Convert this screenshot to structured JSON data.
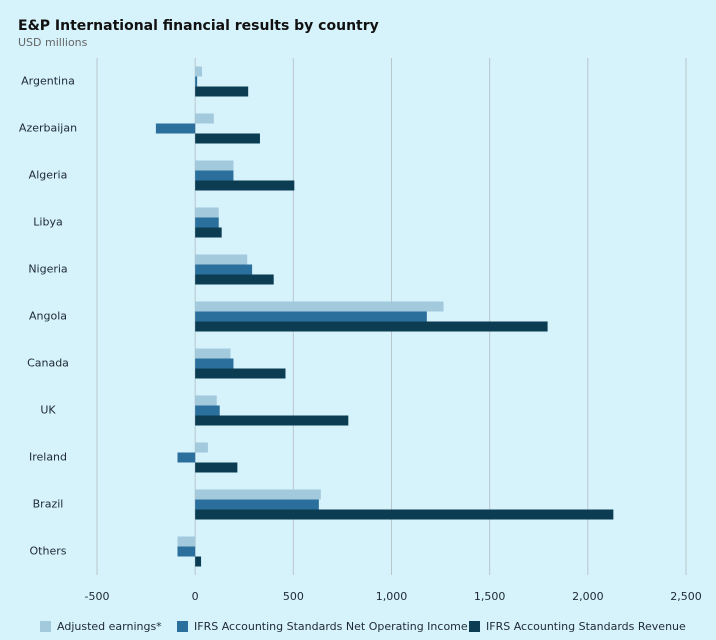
{
  "chart_data": {
    "type": "hbar",
    "title": "E&P International financial results by country",
    "subtitle": "USD millions",
    "categories": [
      "Argentina",
      "Azerbaijan",
      "Algeria",
      "Libya",
      "Nigeria",
      "Angola",
      "Canada",
      "UK",
      "Ireland",
      "Brazil",
      "Others"
    ],
    "series": [
      {
        "name": "Adjusted earnings*",
        "color": "#a3c9dd",
        "values": [
          35,
          95,
          195,
          120,
          265,
          1265,
          180,
          110,
          65,
          640,
          -90
        ]
      },
      {
        "name": "IFRS Accounting Standards Net Operating Income",
        "color": "#2b6f9c",
        "values": [
          10,
          -200,
          195,
          120,
          290,
          1180,
          195,
          125,
          -90,
          630,
          -90
        ]
      },
      {
        "name": "IFRS Accounting Standards Revenue",
        "color": "#0b3c52",
        "values": [
          270,
          330,
          505,
          135,
          400,
          1795,
          460,
          780,
          215,
          2130,
          30
        ]
      }
    ],
    "xlim": [
      -500,
      2500
    ],
    "xticks": [
      -500,
      0,
      500,
      {
        "value": 1000,
        "label": "1,000"
      },
      {
        "value": 1500,
        "label": "1,500"
      },
      {
        "value": 2000,
        "label": "2,000"
      },
      {
        "value": 2500,
        "label": "2,500"
      }
    ],
    "grid": true
  }
}
